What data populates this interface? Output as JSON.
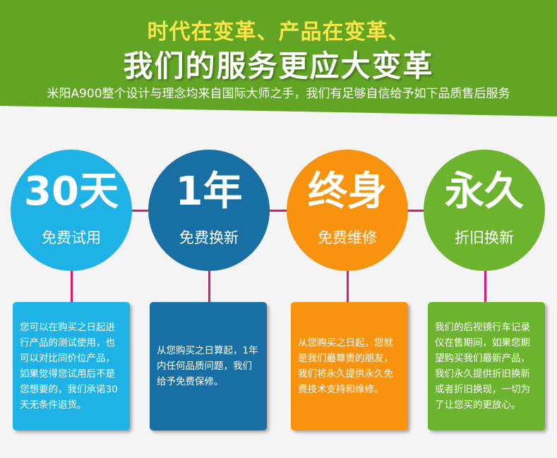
{
  "banner": {
    "title_line1": "时代在变革、产品在变革、",
    "title_line2": "我们的服务更应大变革",
    "subtitle": "米阳A900整个设计与理念均来自国际大师之手，我们有足够自信给予如下品质售后服务",
    "color": "#62a524"
  },
  "items": [
    {
      "big": "30天",
      "small": "免费试用",
      "color": "#1eb2e6",
      "text": "您可以在购买之日起进行产品的测试使用，也可以对比同价位产品，如果觉得您试用后不是您想要的，我们承诺30天无条件退货。"
    },
    {
      "big": "1年",
      "small": "免费换新",
      "color": "#176fa3",
      "text": "从您购买之日算起，1年内任何品质问题，我们给予免费保修。"
    },
    {
      "big": "终身",
      "small": "免费维修",
      "color": "#f7930f",
      "text": "从您购买之日起，您就是我们最尊贵的朋友，我们将永久提供永久免费技术支持和维修。"
    },
    {
      "big": "永久",
      "small": "折旧换新",
      "color": "#6cb42e",
      "text": "我们的后视镜行车记录仪在售期间，如果您期望购买我们最新产品，我们永久提供折旧换新或者折旧换现，一切为了让您买的更放心。"
    }
  ],
  "accent_color": "#e0186e"
}
